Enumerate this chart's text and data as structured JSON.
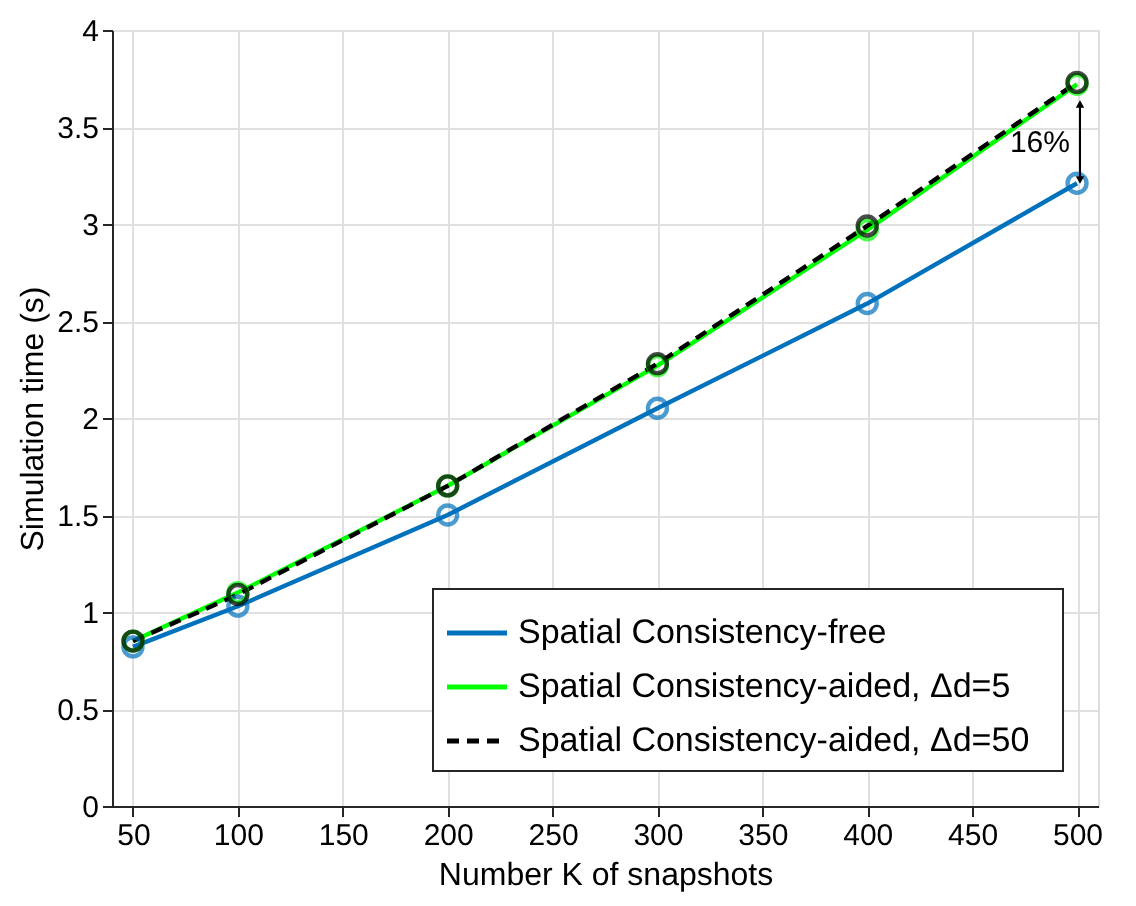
{
  "chart_data": {
    "type": "line",
    "xlabel": "Number K of snapshots",
    "ylabel": "Simulation time (s)",
    "x": [
      50,
      100,
      200,
      300,
      400,
      500
    ],
    "series": [
      {
        "name": "Spatial Consistency-free",
        "color": "#0072bd",
        "values": [
          0.82,
          1.03,
          1.5,
          2.05,
          2.59,
          3.21
        ],
        "line_style": "solid"
      },
      {
        "name": "Spatial Consistency-aided,   Δd=5",
        "color": "#00ff00",
        "values": [
          0.85,
          1.1,
          1.65,
          2.27,
          2.97,
          3.72
        ],
        "line_style": "solid"
      },
      {
        "name": "Spatial Consistency-aided,   Δd=50",
        "color": "#000000",
        "values": [
          0.85,
          1.09,
          1.65,
          2.28,
          2.99,
          3.73
        ],
        "line_style": "dashed"
      }
    ],
    "xlim": [
      40,
      510
    ],
    "xticks": [
      50,
      100,
      150,
      200,
      250,
      300,
      350,
      400,
      450,
      500
    ],
    "ylim": [
      0,
      4
    ],
    "yticks": [
      0,
      0.5,
      1,
      1.5,
      2,
      2.5,
      3,
      3.5,
      4
    ],
    "annotations": [
      "16%"
    ],
    "grid": true,
    "legend": "bottom right",
    "marker": "circle"
  }
}
